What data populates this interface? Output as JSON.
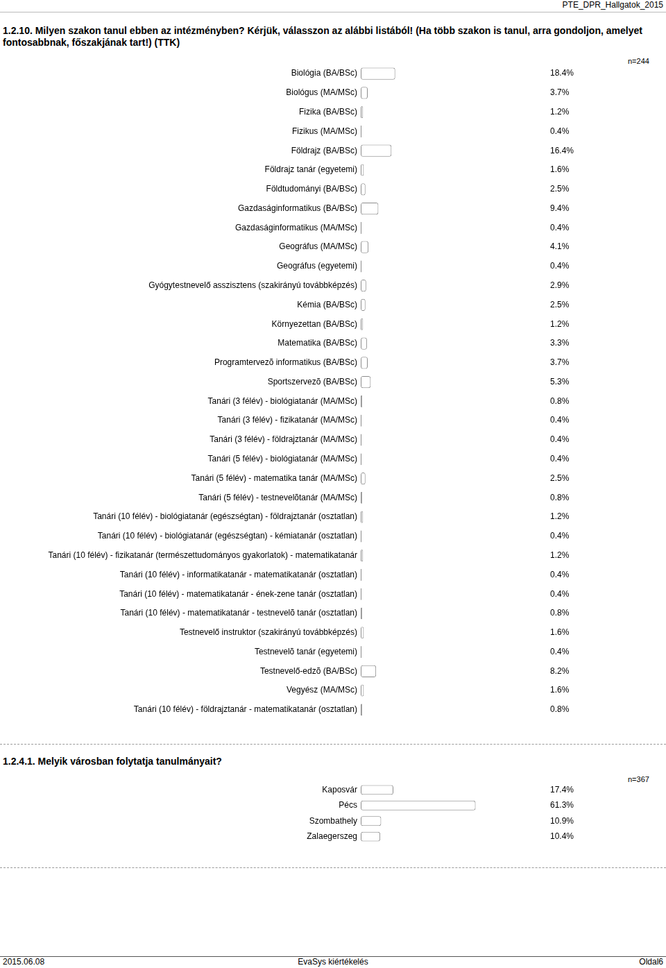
{
  "header": "PTE_DPR_Hallgatok_2015",
  "footer": {
    "date": "2015.06.08",
    "center": "EvaSys kiértékelés",
    "page": "Oldal6"
  },
  "chart_data": [
    {
      "type": "bar",
      "orientation": "horizontal",
      "title": "1.2.10. Milyen szakon tanul ebben az intézményben? Kérjük, válasszon az alábbi listából! (Ha több szakon is tanul, arra gondoljon, amelyet fontosabbnak, főszakjának tart!) (TTK)",
      "annotation": "n=244",
      "categories": [
        "Biológia (BA/BSc)",
        "Biológus (MA/MSc)",
        "Fizika (BA/BSc)",
        "Fizikus (MA/MSc)",
        "Földrajz (BA/BSc)",
        "Földrajz tanár (egyetemi)",
        "Földtudományi (BA/BSc)",
        "Gazdaságinformatikus (BA/BSc)",
        "Gazdaságinformatikus (MA/MSc)",
        "Geográfus (MA/MSc)",
        "Geográfus (egyetemi)",
        "Gyógytestnevelő asszisztens (szakirányú továbbképzés)",
        "Kémia (BA/BSc)",
        "Környezettan (BA/BSc)",
        "Matematika (BA/BSc)",
        "Programtervezõ informatikus (BA/BSc)",
        "Sportszervezõ (BA/BSc)",
        "Tanári (3 félév) - biológiatanár (MA/MSc)",
        "Tanári (3 félév) - fizikatanár (MA/MSc)",
        "Tanári (3 félév) - földrajztanár (MA/MSc)",
        "Tanári (5 félév) - biológiatanár (MA/MSc)",
        "Tanári (5 félév) - matematika tanár (MA/MSc)",
        "Tanári (5 félév) - testnevelõtanár (MA/MSc)",
        "Tanári (10 félév) - biológiatanár (egészségtan) - földrajztanár (osztatlan)",
        "Tanári (10 félév) - biológiatanár (egészségtan) - kémiatanár (osztatlan)",
        "Tanári (10 félév) - fizikatanár (természettudományos gyakorlatok) - matematikatanár",
        "Tanári (10 félév) - informatikatanár - matematikatanár (osztatlan)",
        "Tanári (10 félév) - matematikatanár - ének-zene tanár (osztatlan)",
        "Tanári (10 félév) - matematikatanár - testnevelõ tanár (osztatlan)",
        "Testnevelő instruktor (szakirányú továbbképzés)",
        "Testnevelõ tanár (egyetemi)",
        "Testnevelő-edzõ (BA/BSc)",
        "Vegyész (MA/MSc)",
        "Tanári (10 félév) - földrajztanár - matematikatanár (osztatlan)"
      ],
      "values": [
        18.4,
        3.7,
        1.2,
        0.4,
        16.4,
        1.6,
        2.5,
        9.4,
        0.4,
        4.1,
        0.4,
        2.9,
        2.5,
        1.2,
        3.3,
        3.7,
        5.3,
        0.8,
        0.4,
        0.4,
        0.4,
        2.5,
        0.8,
        1.2,
        0.4,
        1.2,
        0.4,
        0.4,
        0.8,
        1.6,
        0.4,
        8.2,
        1.6,
        0.8
      ],
      "value_labels": [
        "18.4%",
        "3.7%",
        "1.2%",
        "0.4%",
        "16.4%",
        "1.6%",
        "2.5%",
        "9.4%",
        "0.4%",
        "4.1%",
        "0.4%",
        "2.9%",
        "2.5%",
        "1.2%",
        "3.3%",
        "3.7%",
        "5.3%",
        "0.8%",
        "0.4%",
        "0.4%",
        "0.4%",
        "2.5%",
        "0.8%",
        "1.2%",
        "0.4%",
        "1.2%",
        "0.4%",
        "0.4%",
        "0.8%",
        "1.6%",
        "0.4%",
        "8.2%",
        "1.6%",
        "0.8%"
      ],
      "data_labels": true,
      "color": "#ffffff",
      "xlim": [
        0,
        100
      ],
      "tick_labels": "y",
      "grid": false
    },
    {
      "type": "bar",
      "orientation": "horizontal",
      "title": "1.2.4.1. Melyik városban folytatja tanulmányait?",
      "annotation": "n=367",
      "categories": [
        "Kaposvár",
        "Pécs",
        "Szombathely",
        "Zalaegerszeg"
      ],
      "values": [
        17.4,
        61.3,
        10.9,
        10.4
      ],
      "value_labels": [
        "17.4%",
        "61.3%",
        "10.9%",
        "10.4%"
      ],
      "data_labels": true,
      "color": "#ffffff",
      "xlim": [
        0,
        100
      ],
      "tick_labels": "y",
      "grid": false
    }
  ]
}
